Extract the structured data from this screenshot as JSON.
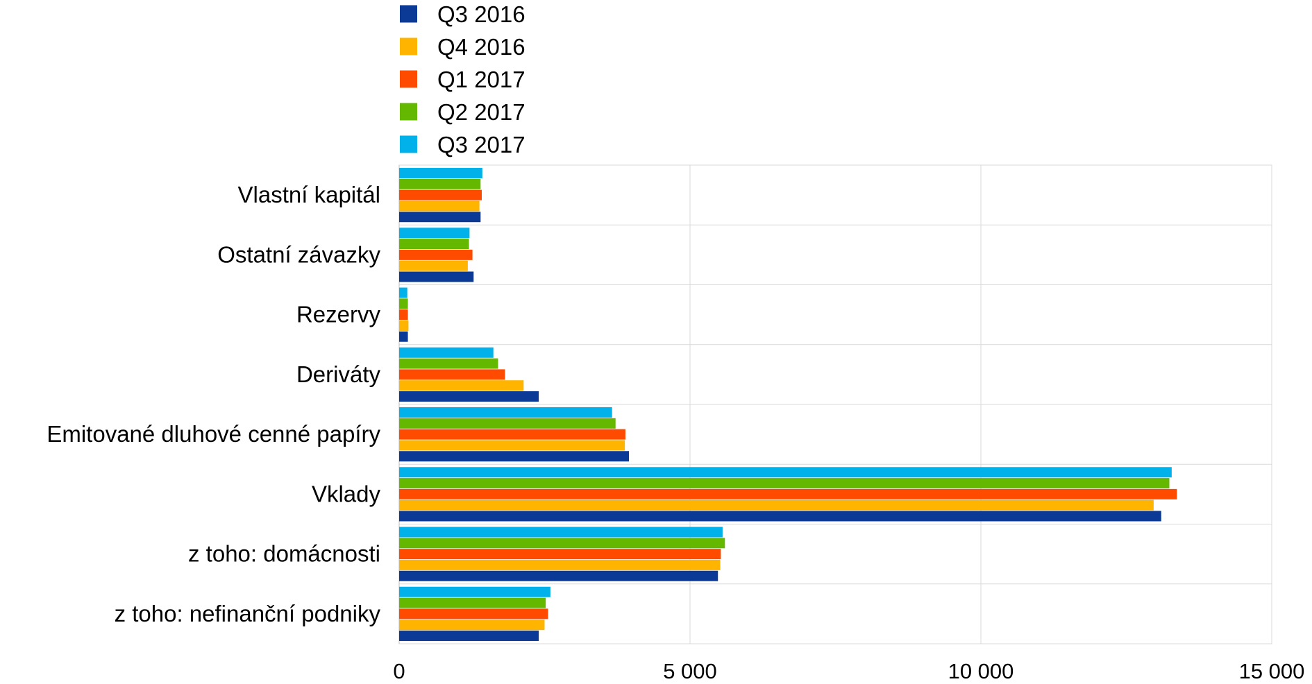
{
  "chart_data": {
    "type": "bar",
    "orientation": "horizontal",
    "categories": [
      "Vlastní kapitál",
      "Ostatní závazky",
      "Rezervy",
      "Deriváty",
      "Emitované dluhové cenné papíry",
      "Vklady",
      "z toho: domácnosti",
      "z toho: nefinanční podniky"
    ],
    "series": [
      {
        "name": "Q3 2016",
        "color": "#0b3a96",
        "values": [
          1400,
          1280,
          150,
          2400,
          3950,
          13100,
          5480,
          2400
        ]
      },
      {
        "name": "Q4 2016",
        "color": "#ffb400",
        "values": [
          1380,
          1180,
          160,
          2140,
          3880,
          12970,
          5520,
          2500
        ]
      },
      {
        "name": "Q1 2017",
        "color": "#ff4b00",
        "values": [
          1420,
          1260,
          150,
          1820,
          3890,
          13370,
          5530,
          2560
        ]
      },
      {
        "name": "Q2 2017",
        "color": "#65b800",
        "values": [
          1400,
          1200,
          150,
          1700,
          3720,
          13240,
          5600,
          2520
        ]
      },
      {
        "name": "Q3 2017",
        "color": "#00b1ea",
        "values": [
          1430,
          1210,
          140,
          1620,
          3660,
          13280,
          5560,
          2600
        ]
      }
    ],
    "xlim": [
      0,
      15000
    ],
    "xticks": [
      0,
      5000,
      10000,
      15000
    ],
    "xtick_labels": [
      "0",
      "5 000",
      "10 000",
      "15 000"
    ],
    "grid": true,
    "legend_position": "top-center",
    "title": "",
    "xlabel": "",
    "ylabel": ""
  }
}
